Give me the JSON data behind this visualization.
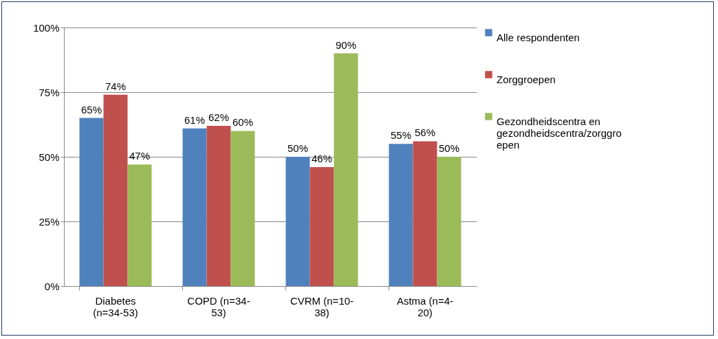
{
  "chart_data": {
    "type": "bar",
    "categories": [
      "Diabetes (n=34-53)",
      "COPD (n=34-53)",
      "CVRM (n=10-38)",
      "Astma (n=4-20)"
    ],
    "series": [
      {
        "name": "Alle respondenten",
        "color": "#4f81bd",
        "values": [
          65,
          61,
          50,
          55
        ],
        "value_labels": [
          "65%",
          "61%",
          "50%",
          "55%"
        ]
      },
      {
        "name": "Zorggroepen",
        "color": "#c0504d",
        "values": [
          74,
          62,
          46,
          56
        ],
        "value_labels": [
          "74%",
          "62%",
          "46%",
          "56%"
        ]
      },
      {
        "name": "Gezondheidscentra en gezondheidscentra/zorggroepen",
        "color": "#9bbb59",
        "values": [
          47,
          60,
          90,
          50
        ],
        "value_labels": [
          "47%",
          "60%",
          "90%",
          "50%"
        ]
      }
    ],
    "ylim": [
      0,
      100
    ],
    "yticks": [
      {
        "value": 0,
        "label": "0%"
      },
      {
        "value": 25,
        "label": "25%"
      },
      {
        "value": 50,
        "label": "50%"
      },
      {
        "value": 75,
        "label": "75%"
      },
      {
        "value": 100,
        "label": "100%"
      }
    ],
    "grid": "y",
    "legend": "right"
  }
}
